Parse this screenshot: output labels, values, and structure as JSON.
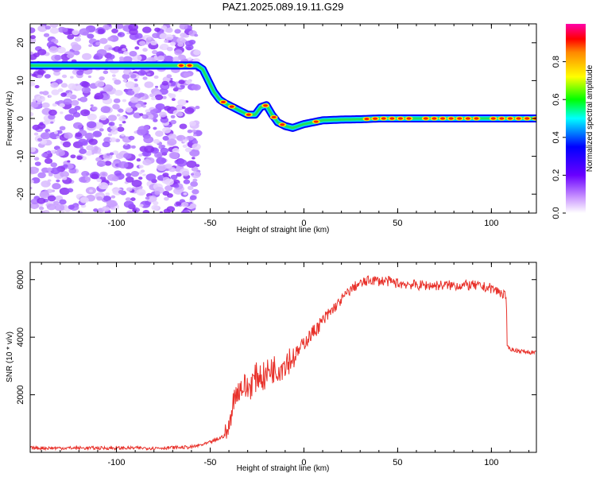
{
  "title": "PAZ1.2025.089.19.11.G29",
  "chart_data": [
    {
      "type": "heatmap",
      "xlabel": "Height of straight line (km)",
      "ylabel": "Frequency (Hz)",
      "xlim": [
        -146,
        124
      ],
      "ylim": [
        -25,
        25
      ],
      "xticks": [
        -100,
        -50,
        0,
        50,
        100
      ],
      "yticks": [
        -20,
        -10,
        0,
        10,
        20
      ],
      "ridge": {
        "x": [
          -146,
          -75,
          -66,
          -57,
          -54,
          -51,
          -48,
          -45,
          -42,
          -38,
          -34,
          -30,
          -26,
          -23,
          -20,
          -17,
          -14,
          -10,
          -6,
          -3,
          0,
          5,
          10,
          20,
          30,
          40,
          60,
          80,
          100,
          124
        ],
        "y": [
          14,
          14,
          14,
          14,
          13,
          10,
          7,
          5,
          4,
          3,
          2,
          1,
          1,
          3,
          3.5,
          1,
          -1,
          -2,
          -2.5,
          -2,
          -1.5,
          -1,
          -0.5,
          -0.3,
          -0.2,
          0,
          0,
          0,
          0,
          0
        ]
      },
      "colorbar": {
        "label": "Normalized spectral amplitude",
        "ticks": [
          0.0,
          0.2,
          0.4,
          0.6,
          0.8
        ],
        "range": [
          0,
          1
        ]
      }
    },
    {
      "type": "line",
      "xlabel": "Height of straight line (km)",
      "ylabel": "SNR (10 * v/v)",
      "xlim": [
        -146,
        124
      ],
      "ylim": [
        0,
        6600
      ],
      "xticks": [
        -100,
        -50,
        0,
        50,
        100
      ],
      "yticks": [
        2000,
        4000,
        6000
      ],
      "color": "#e8312a",
      "series": [
        {
          "x": [
            -146,
            -120,
            -100,
            -80,
            -60,
            -52,
            -46,
            -42,
            -40,
            -38,
            -36,
            -33,
            -30,
            -27,
            -24,
            -21,
            -18,
            -15,
            -12,
            -9,
            -6,
            -3,
            0,
            4,
            8,
            12,
            16,
            20,
            24,
            28,
            32,
            36,
            40,
            44,
            48,
            52,
            56,
            60,
            70,
            80,
            90,
            100,
            108,
            108.3,
            112,
            118,
            124
          ],
          "y": [
            150,
            150,
            150,
            150,
            180,
            300,
            450,
            600,
            800,
            1700,
            2100,
            2300,
            2200,
            2500,
            2700,
            2600,
            2900,
            2900,
            3000,
            3200,
            3300,
            3500,
            3800,
            4100,
            4400,
            4700,
            5000,
            5300,
            5600,
            5800,
            5900,
            6000,
            5950,
            5950,
            5900,
            5850,
            5850,
            5800,
            5800,
            5800,
            5800,
            5700,
            5450,
            3650,
            3550,
            3500,
            3450
          ]
        }
      ]
    }
  ]
}
